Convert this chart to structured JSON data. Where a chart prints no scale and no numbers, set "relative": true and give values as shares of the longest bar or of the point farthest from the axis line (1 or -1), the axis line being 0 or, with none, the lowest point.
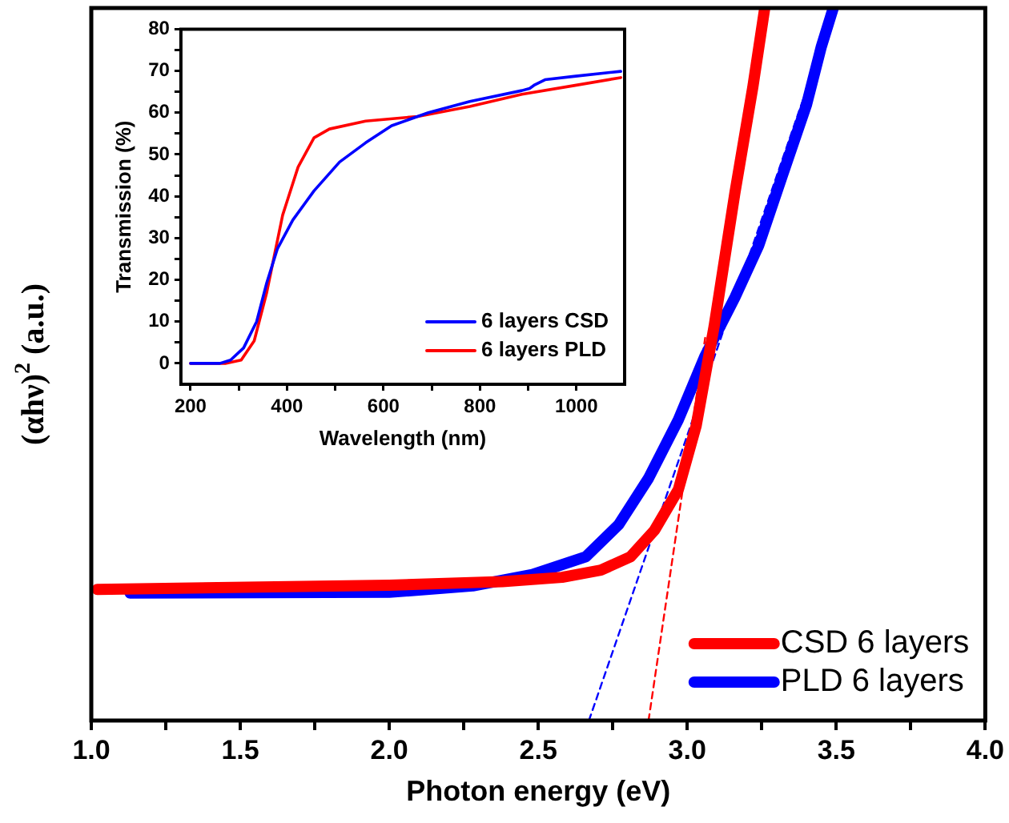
{
  "chart_data": [
    {
      "type": "line",
      "xlabel": "Photon energy (eV)",
      "ylabel": "(αhν)$^{2}$ (a.u.)",
      "relative": true,
      "xlim": [
        1,
        4
      ],
      "xticks": [
        {
          "value": 1,
          "label": "1.0"
        },
        {
          "value": 1.25,
          "label": null
        },
        {
          "value": 1.5,
          "label": "1.5"
        },
        {
          "value": 1.75,
          "label": null
        },
        {
          "value": 2,
          "label": "2.0"
        },
        {
          "value": 2.25,
          "label": null
        },
        {
          "value": 2.5,
          "label": "2.5"
        },
        {
          "value": 2.75,
          "label": null
        },
        {
          "value": 3,
          "label": "3.0"
        },
        {
          "value": 3.25,
          "label": null
        },
        {
          "value": 3.5,
          "label": "3.5"
        },
        {
          "value": 3.75,
          "label": null
        },
        {
          "value": 4,
          "label": "4.0"
        }
      ],
      "legend": "bottom right",
      "marker": "none",
      "grid": false,
      "series": [
        {
          "name": "CSD 6 layers",
          "color": "#ff0000",
          "x": [
            1.02,
            2.0,
            2.38,
            2.58,
            2.71,
            2.81,
            2.89,
            2.97,
            3.03,
            3.09,
            3.16,
            3.22,
            3.26
          ],
          "values": [
            0.184,
            0.19,
            0.195,
            0.201,
            0.211,
            0.23,
            0.267,
            0.324,
            0.414,
            0.553,
            0.741,
            0.889,
            1.0
          ]
        },
        {
          "name": "PLD 6 layers",
          "color": "#0000ff",
          "x": [
            1.13,
            2.0,
            2.28,
            2.48,
            2.66,
            2.77,
            2.87,
            2.97,
            3.06,
            3.16,
            3.24,
            3.32,
            3.4,
            3.45,
            3.49
          ],
          "values": [
            0.179,
            0.18,
            0.189,
            0.205,
            0.23,
            0.275,
            0.34,
            0.422,
            0.512,
            0.594,
            0.667,
            0.766,
            0.864,
            0.946,
            1.0
          ]
        },
        {
          "type": "line",
          "color": "#0000ff",
          "line_style": "dashed",
          "x": [
            2.67,
            3.45
          ],
          "values": [
            0,
            0.946
          ]
        },
        {
          "type": "line",
          "color": "#ff0000",
          "line_style": "dashed",
          "x": [
            2.87,
            3.06
          ],
          "values": [
            0,
            0.537
          ]
        }
      ]
    },
    {
      "type": "line",
      "xlabel": "Wavelength (nm)",
      "ylabel": "Transmission (%)",
      "xlim": [
        180,
        1100
      ],
      "ylim": [
        -5,
        80
      ],
      "xticks": [
        200,
        {
          "value": 300,
          "label": null
        },
        400,
        {
          "value": 500,
          "label": null
        },
        600,
        {
          "value": 700,
          "label": null
        },
        800,
        {
          "value": 900,
          "label": null
        },
        1000
      ],
      "yticks": [
        0,
        {
          "value": 5,
          "label": null
        },
        10,
        {
          "value": 15,
          "label": null
        },
        20,
        {
          "value": 25,
          "label": null
        },
        30,
        {
          "value": 35,
          "label": null
        },
        40,
        {
          "value": 45,
          "label": null
        },
        50,
        {
          "value": 55,
          "label": null
        },
        60,
        {
          "value": 65,
          "label": null
        },
        70,
        {
          "value": 75,
          "label": null
        },
        80
      ],
      "legend": "bottom right",
      "marker": "none",
      "grid": false,
      "series": [
        {
          "name": "6 layers CSD",
          "color": "#0000ff",
          "x": [
            200,
            261,
            283,
            310,
            337,
            358,
            380,
            412,
            456,
            509,
            563,
            617,
            693,
            779,
            887,
            903,
            914,
            935,
            995,
            1092
          ],
          "values": [
            0,
            0,
            0.8,
            3.7,
            10,
            19.3,
            27.4,
            34.3,
            41.3,
            48.2,
            52.8,
            56.9,
            60,
            62.7,
            65.3,
            65.8,
            66.7,
            67.9,
            68.7,
            69.9
          ]
        },
        {
          "name": "6 layers PLD",
          "color": "#ff0000",
          "x": [
            200,
            272,
            305,
            332,
            358,
            391,
            423,
            456,
            488,
            563,
            671,
            779,
            887,
            995,
            1092
          ],
          "values": [
            0,
            0,
            0.8,
            5.4,
            17,
            35.5,
            47,
            54,
            56.1,
            58,
            59.1,
            61.5,
            64.4,
            66.5,
            68.4
          ]
        }
      ]
    }
  ]
}
